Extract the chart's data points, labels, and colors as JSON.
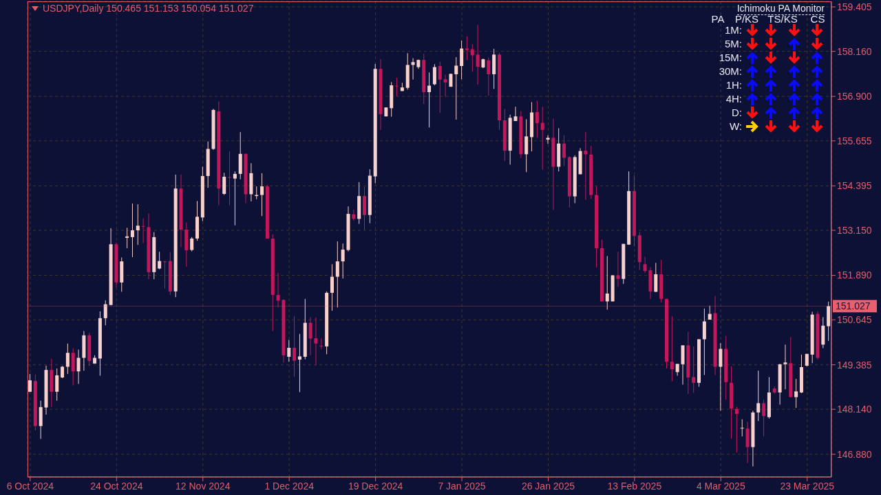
{
  "chart_data": {
    "type": "candlestick",
    "title": "USDJPY,Daily 150.465 151.153 150.054 151.027",
    "annotations": [
      "Ichimoku PA Monitor",
      "PA",
      "P/KS",
      "TS/KS",
      "CS",
      "1M:",
      "5M:",
      "15M:",
      "30M:",
      "1H:",
      "4H:",
      "D:",
      "W:"
    ],
    "categories": [
      "6 Oct 2024",
      null,
      null,
      null,
      null,
      null,
      null,
      null,
      null,
      null,
      null,
      null,
      null,
      null,
      null,
      null,
      "24 Oct 2024",
      null,
      null,
      null,
      null,
      null,
      null,
      null,
      null,
      null,
      null,
      null,
      null,
      null,
      null,
      null,
      "12 Nov 2024",
      null,
      null,
      null,
      null,
      null,
      null,
      null,
      null,
      null,
      null,
      null,
      null,
      null,
      null,
      null,
      "1 Dec 2024",
      null,
      null,
      null,
      null,
      null,
      null,
      null,
      null,
      null,
      null,
      null,
      null,
      null,
      null,
      null,
      "19 Dec 2024",
      null,
      null,
      null,
      null,
      null,
      null,
      null,
      null,
      null,
      null,
      null,
      null,
      null,
      null,
      null,
      "7 Jan 2025",
      null,
      null,
      null,
      null,
      null,
      null,
      null,
      null,
      null,
      null,
      null,
      null,
      null,
      null,
      null,
      "26 Jan 2025",
      null,
      null,
      null,
      null,
      null,
      null,
      null,
      null,
      null,
      null,
      null,
      null,
      null,
      null,
      null,
      "13 Feb 2025",
      null,
      null,
      null,
      null,
      null,
      null,
      null,
      null,
      null,
      null,
      null,
      null,
      null,
      null,
      null,
      "4 Mar 2025",
      null,
      null,
      null,
      null,
      null,
      null,
      null,
      null,
      null,
      null,
      null,
      null,
      null,
      null,
      null,
      "23 Mar 2025",
      null,
      null,
      null,
      null
    ],
    "ohlc": [
      [
        148.63,
        149.13,
        148.62,
        148.95
      ],
      [
        148.93,
        149.11,
        147.55,
        147.67
      ],
      [
        147.67,
        148.38,
        147.31,
        148.2
      ],
      [
        148.19,
        149.36,
        147.99,
        149.24
      ],
      [
        149.24,
        149.56,
        148.2,
        148.63
      ],
      [
        148.63,
        149.28,
        148.38,
        149.09
      ],
      [
        149.03,
        149.35,
        149.01,
        149.33
      ],
      [
        149.33,
        149.98,
        149.13,
        149.72
      ],
      [
        149.72,
        149.85,
        148.81,
        149.2
      ],
      [
        149.2,
        149.81,
        148.85,
        149.58
      ],
      [
        149.58,
        150.33,
        149.22,
        150.21
      ],
      [
        150.21,
        150.28,
        149.35,
        149.49
      ],
      [
        149.42,
        149.65,
        149.42,
        149.58
      ],
      [
        149.56,
        150.88,
        149.08,
        150.69
      ],
      [
        150.69,
        151.19,
        150.49,
        151.08
      ],
      [
        151.06,
        153.21,
        151.05,
        152.76
      ],
      [
        152.76,
        152.81,
        151.55,
        151.69
      ],
      [
        151.69,
        152.39,
        151.43,
        152.28
      ],
      [
        152.94,
        153.22,
        152.65,
        152.98
      ],
      [
        152.96,
        153.9,
        152.4,
        153.15
      ],
      [
        153.15,
        153.88,
        152.74,
        153.28
      ],
      [
        153.27,
        153.49,
        152.79,
        153.25
      ],
      [
        153.24,
        153.62,
        151.78,
        151.98
      ],
      [
        151.98,
        153.1,
        151.78,
        152.96
      ],
      [
        152.08,
        152.55,
        152.06,
        152.29
      ],
      [
        152.28,
        152.29,
        151.52,
        152.26
      ],
      [
        152.29,
        152.54,
        151.34,
        151.44
      ],
      [
        151.44,
        154.71,
        151.28,
        154.32
      ],
      [
        154.32,
        154.71,
        152.68,
        153.17
      ],
      [
        153.17,
        153.37,
        152.13,
        152.59
      ],
      [
        152.6,
        152.96,
        152.56,
        152.92
      ],
      [
        152.92,
        153.97,
        152.86,
        153.53
      ],
      [
        153.51,
        154.93,
        153.41,
        154.67
      ],
      [
        154.67,
        155.64,
        154.34,
        155.43
      ],
      [
        155.43,
        156.55,
        155.4,
        156.52
      ],
      [
        156.48,
        156.76,
        153.85,
        154.32
      ],
      [
        154.17,
        154.76,
        154.14,
        154.65
      ],
      [
        154.64,
        155.36,
        153.85,
        154.62
      ],
      [
        154.6,
        154.8,
        153.29,
        154.73
      ],
      [
        154.73,
        155.9,
        154.58,
        155.29
      ],
      [
        155.29,
        155.3,
        153.91,
        154.16
      ],
      [
        154.16,
        155.03,
        153.96,
        154.75
      ],
      [
        154.11,
        154.38,
        154.02,
        154.14
      ],
      [
        154.14,
        154.75,
        153.55,
        154.38
      ],
      [
        154.38,
        154.42,
        152.92,
        152.92
      ],
      [
        152.92,
        153.04,
        150.33,
        151.34
      ],
      [
        151.34,
        151.96,
        150.99,
        151.18
      ],
      [
        151.2,
        151.22,
        149.45,
        149.65
      ],
      [
        149.61,
        150.08,
        149.47,
        149.86
      ],
      [
        149.86,
        150.75,
        149.05,
        149.5
      ],
      [
        149.53,
        150.25,
        148.62,
        149.62
      ],
      [
        149.61,
        151.23,
        149.54,
        150.56
      ],
      [
        150.56,
        150.72,
        149.65,
        150.12
      ],
      [
        150.13,
        150.71,
        149.37,
        149.98
      ],
      [
        149.92,
        150.12,
        149.83,
        149.91
      ],
      [
        149.9,
        151.44,
        149.68,
        151.4
      ],
      [
        151.4,
        152.2,
        150.9,
        151.85
      ],
      [
        151.85,
        152.84,
        150.99,
        152.28
      ],
      [
        152.28,
        152.78,
        151.8,
        152.61
      ],
      [
        152.6,
        153.82,
        152.56,
        153.61
      ],
      [
        153.6,
        153.73,
        153.42,
        153.47
      ],
      [
        153.47,
        154.5,
        153.33,
        154.11
      ],
      [
        154.11,
        154.37,
        153.16,
        153.58
      ],
      [
        153.58,
        154.86,
        153.35,
        154.68
      ],
      [
        154.66,
        157.81,
        154.47,
        157.67
      ],
      [
        157.67,
        157.94,
        155.96,
        156.4
      ],
      [
        156.34,
        156.59,
        156.34,
        156.59
      ],
      [
        156.57,
        157.3,
        156.33,
        157.21
      ],
      [
        157.2,
        157.42,
        156.9,
        157.19
      ],
      [
        157.05,
        157.28,
        157.05,
        157.15
      ],
      [
        157.14,
        158.11,
        157.09,
        157.78
      ],
      [
        157.78,
        157.97,
        157.37,
        157.86
      ],
      [
        157.72,
        157.93,
        157.67,
        157.92
      ],
      [
        157.92,
        158.09,
        156.69,
        157.02
      ],
      [
        157.02,
        157.57,
        156.03,
        157.2
      ],
      [
        157.24,
        157.8,
        157.21,
        157.72
      ],
      [
        157.75,
        157.87,
        156.44,
        157.37
      ],
      [
        157.38,
        157.51,
        156.88,
        157.29
      ],
      [
        157.17,
        157.54,
        157.17,
        157.53
      ],
      [
        157.52,
        158.0,
        156.25,
        157.76
      ],
      [
        157.75,
        158.46,
        157.38,
        158.24
      ],
      [
        158.24,
        158.58,
        157.92,
        158.2
      ],
      [
        158.22,
        158.36,
        157.59,
        158.05
      ],
      [
        158.07,
        158.9,
        157.23,
        157.73
      ],
      [
        157.71,
        157.96,
        157.69,
        157.94
      ],
      [
        157.91,
        157.99,
        156.92,
        157.52
      ],
      [
        157.52,
        158.23,
        157.11,
        158.07
      ],
      [
        158.07,
        158.12,
        155.96,
        156.23
      ],
      [
        156.23,
        156.55,
        155.09,
        155.38
      ],
      [
        155.38,
        156.39,
        154.99,
        156.3
      ],
      [
        156.21,
        156.61,
        156.21,
        156.34
      ],
      [
        156.34,
        156.49,
        155.18,
        155.28
      ],
      [
        155.28,
        156.26,
        154.78,
        155.78
      ],
      [
        155.76,
        156.74,
        155.36,
        156.45
      ],
      [
        156.46,
        156.78,
        155.74,
        156.15
      ],
      [
        156.16,
        156.61,
        154.85,
        155.96
      ],
      [
        155.69,
        155.81,
        155.57,
        155.74
      ],
      [
        155.74,
        156.28,
        153.72,
        154.93
      ],
      [
        154.93,
        156.01,
        154.8,
        155.58
      ],
      [
        155.58,
        155.81,
        154.95,
        155.18
      ],
      [
        155.2,
        155.22,
        153.79,
        154.1
      ],
      [
        154.1,
        155.25,
        153.91,
        155.2
      ],
      [
        154.72,
        155.45,
        154.72,
        155.37
      ],
      [
        155.38,
        155.9,
        154.0,
        155.28
      ],
      [
        155.27,
        155.52,
        154.03,
        154.14
      ],
      [
        154.14,
        154.38,
        152.11,
        152.65
      ],
      [
        152.65,
        152.89,
        151.16,
        151.16
      ],
      [
        151.16,
        152.43,
        150.93,
        151.38
      ],
      [
        151.16,
        151.89,
        151.16,
        151.89
      ],
      [
        151.89,
        152.55,
        151.57,
        151.79
      ],
      [
        151.79,
        152.77,
        151.65,
        152.77
      ],
      [
        152.75,
        154.8,
        152.74,
        154.25
      ],
      [
        154.25,
        154.69,
        152.7,
        152.99
      ],
      [
        153.01,
        153.11,
        152.04,
        152.26
      ],
      [
        152.2,
        152.41,
        151.96,
        152.01
      ],
      [
        152.03,
        152.12,
        151.23,
        151.44
      ],
      [
        151.43,
        152.24,
        151.42,
        151.92
      ],
      [
        151.92,
        152.32,
        151.13,
        151.23
      ],
      [
        151.23,
        151.24,
        149.28,
        149.47
      ],
      [
        149.47,
        150.75,
        148.92,
        149.26
      ],
      [
        149.18,
        149.41,
        149.08,
        149.41
      ],
      [
        149.4,
        149.93,
        148.83,
        149.93
      ],
      [
        149.93,
        150.31,
        148.57,
        149.03
      ],
      [
        149.04,
        149.9,
        148.6,
        148.88
      ],
      [
        148.88,
        150.1,
        148.77,
        150.1
      ],
      [
        150.1,
        150.96,
        149.1,
        150.6
      ],
      [
        150.65,
        151.04,
        150.65,
        150.81
      ],
      [
        150.83,
        151.31,
        149.1,
        149.33
      ],
      [
        149.33,
        149.99,
        148.1,
        149.83
      ],
      [
        149.83,
        150.19,
        148.41,
        148.9
      ],
      [
        148.88,
        149.34,
        147.32,
        148.16
      ],
      [
        148.15,
        148.21,
        146.93,
        148.01
      ],
      [
        147.6,
        147.86,
        147.38,
        147.62
      ],
      [
        147.6,
        147.79,
        146.63,
        147.08
      ],
      [
        147.08,
        148.1,
        146.54,
        148.05
      ],
      [
        148.05,
        149.22,
        147.81,
        148.31
      ],
      [
        148.31,
        148.41,
        147.38,
        147.95
      ],
      [
        147.92,
        149.04,
        147.88,
        148.61
      ],
      [
        148.72,
        148.78,
        148.57,
        148.61
      ],
      [
        148.61,
        149.41,
        148.27,
        149.4
      ],
      [
        149.4,
        149.95,
        148.7,
        149.45
      ],
      [
        149.43,
        150.16,
        148.47,
        148.48
      ],
      [
        148.48,
        148.99,
        148.18,
        148.64
      ],
      [
        148.61,
        149.67,
        148.59,
        149.32
      ],
      [
        149.36,
        149.69,
        149.34,
        149.69
      ],
      [
        149.67,
        150.87,
        149.43,
        150.79
      ],
      [
        150.81,
        150.88,
        149.53,
        149.58
      ],
      [
        149.95,
        150.72,
        149.85,
        150.48
      ],
      [
        150.465,
        151.153,
        150.054,
        151.027
      ]
    ],
    "colors": [
      "#f8d0cc",
      "#c2185b",
      "#f8d0cc",
      "#f8d0cc",
      "#c2185b",
      "#f8d0cc",
      "#f8d0cc",
      "#f8d0cc",
      "#c2185b",
      "#f8d0cc",
      "#f8d0cc",
      "#c2185b",
      "#f8d0cc",
      "#f8d0cc",
      "#f8d0cc",
      "#f8d0cc",
      "#c2185b",
      "#f8d0cc",
      "#f8d0cc",
      "#f8d0cc",
      "#f8d0cc",
      "#c2185b",
      "#c2185b",
      "#f8d0cc",
      "#f8d0cc",
      "#c2185b",
      "#c2185b",
      "#f8d0cc",
      "#c2185b",
      "#c2185b",
      "#f8d0cc",
      "#f8d0cc",
      "#f8d0cc",
      "#f8d0cc",
      "#f8d0cc",
      "#c2185b",
      "#f8d0cc",
      "#c2185b",
      "#f8d0cc",
      "#f8d0cc",
      "#c2185b",
      "#f8d0cc",
      "#f8d0cc",
      "#f8d0cc",
      "#c2185b",
      "#c2185b",
      "#c2185b",
      "#c2185b",
      "#f8d0cc",
      "#c2185b",
      "#f8d0cc",
      "#f8d0cc",
      "#c2185b",
      "#c2185b",
      "#c2185b",
      "#f8d0cc",
      "#f8d0cc",
      "#f8d0cc",
      "#f8d0cc",
      "#f8d0cc",
      "#c2185b",
      "#f8d0cc",
      "#c2185b",
      "#f8d0cc",
      "#f8d0cc",
      "#c2185b",
      "#f8d0cc",
      "#f8d0cc",
      "#c2185b",
      "#f8d0cc",
      "#f8d0cc",
      "#f8d0cc",
      "#f8d0cc",
      "#c2185b",
      "#f8d0cc",
      "#f8d0cc",
      "#c2185b",
      "#c2185b",
      "#f8d0cc",
      "#f8d0cc",
      "#f8d0cc",
      "#c2185b",
      "#c2185b",
      "#c2185b",
      "#f8d0cc",
      "#c2185b",
      "#f8d0cc",
      "#c2185b",
      "#c2185b",
      "#f8d0cc",
      "#f8d0cc",
      "#c2185b",
      "#f8d0cc",
      "#f8d0cc",
      "#c2185b",
      "#c2185b",
      "#f8d0cc",
      "#c2185b",
      "#f8d0cc",
      "#c2185b",
      "#c2185b",
      "#f8d0cc",
      "#f8d0cc",
      "#c2185b",
      "#c2185b",
      "#c2185b",
      "#c2185b",
      "#f8d0cc",
      "#f8d0cc",
      "#c2185b",
      "#f8d0cc",
      "#f8d0cc",
      "#c2185b",
      "#c2185b",
      "#c2185b",
      "#c2185b",
      "#f8d0cc",
      "#c2185b",
      "#c2185b",
      "#c2185b",
      "#f8d0cc",
      "#f8d0cc",
      "#c2185b",
      "#c2185b",
      "#f8d0cc",
      "#f8d0cc",
      "#f8d0cc",
      "#c2185b",
      "#f8d0cc",
      "#c2185b",
      "#c2185b",
      "#c2185b",
      "#f8d0cc",
      "#c2185b",
      "#f8d0cc",
      "#f8d0cc",
      "#c2185b",
      "#f8d0cc",
      "#c2185b",
      "#f8d0cc",
      "#f8d0cc",
      "#c2185b",
      "#f8d0cc",
      "#f8d0cc",
      "#f8d0cc",
      "#f8d0cc",
      "#c2185b",
      "#f8d0cc",
      "#f8d0cc"
    ],
    "ylim": [
      146.24,
      159.56
    ],
    "yticks": [
      {
        "value": 146.88,
        "label": "146.880"
      },
      {
        "value": 148.14,
        "label": "148.140"
      },
      149.385,
      150.645,
      {
        "value": 151.89,
        "label": "151.890"
      },
      {
        "value": 153.15,
        "label": "153.150"
      },
      154.395,
      155.655,
      {
        "value": 156.9,
        "label": "156.900"
      },
      {
        "value": 158.16,
        "label": "158.160"
      },
      159.405
    ],
    "ref_lines": [
      {
        "axis": "y",
        "value": 151.027,
        "label": "151.027",
        "color": "#e8606f"
      }
    ],
    "grid": true
  }
}
